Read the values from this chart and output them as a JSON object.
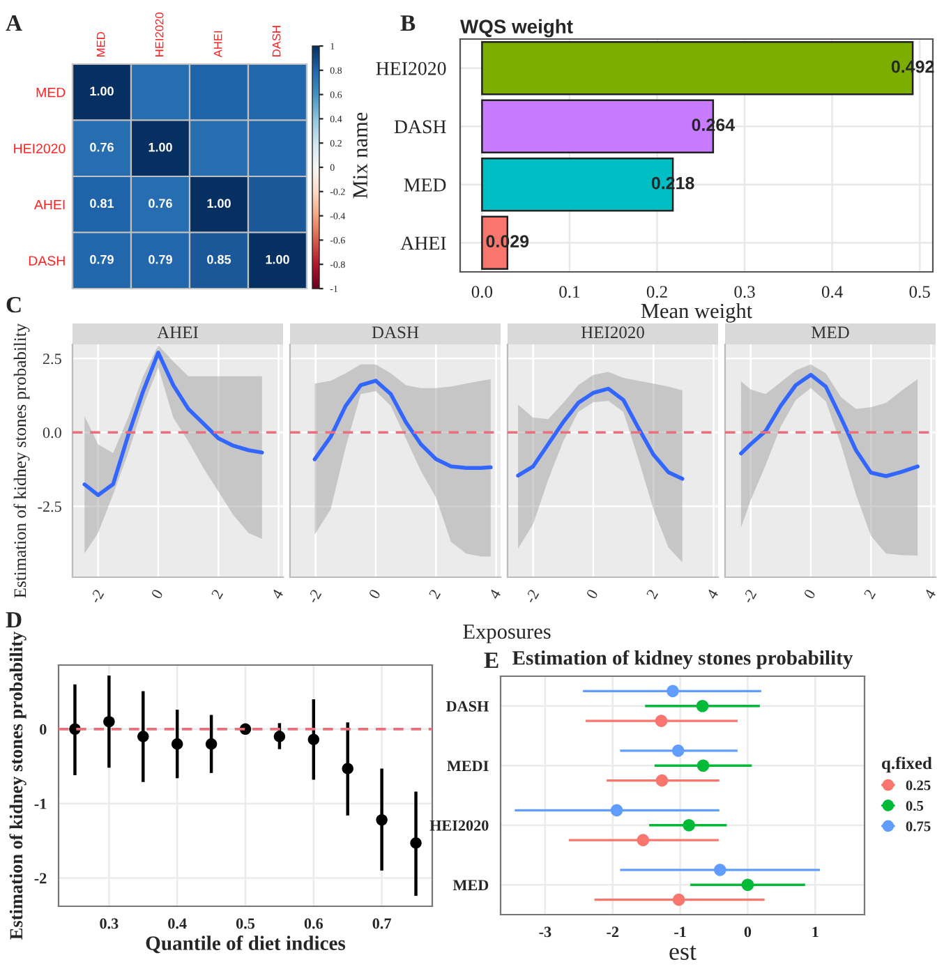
{
  "chart_data": [
    {
      "type": "heatmap",
      "annotations": [
        "A"
      ],
      "categories": [
        "MED",
        "HEI2020",
        "AHEI",
        "DASH"
      ],
      "y_categories": [
        "MED",
        "HEI2020",
        "AHEI",
        "DASH"
      ],
      "cells": [
        [
          1,
          0.76,
          0.81,
          0.79
        ],
        [
          0.76,
          1,
          0.76,
          0.79
        ],
        [
          0.81,
          0.76,
          1,
          0.85
        ],
        [
          0.79,
          0.79,
          0.85,
          1
        ]
      ],
      "cell_labels": [
        [
          "1.00",
          null,
          null,
          null
        ],
        [
          "0.76",
          "1.00",
          null,
          null
        ],
        [
          "0.81",
          "0.76",
          "1.00",
          null
        ],
        [
          "0.79",
          "0.79",
          "0.85",
          "1.00"
        ]
      ],
      "clim": [
        -1,
        1
      ],
      "cticks": [
        -1,
        -0.8,
        -0.6,
        -0.4,
        -0.2,
        0,
        0.2,
        0.4,
        0.6,
        0.8,
        1
      ]
    },
    {
      "type": "bar",
      "orientation": "horizontal",
      "title": "WQS weight",
      "annotations": [
        "B"
      ],
      "xlabel": "Mean weight",
      "ylabel": "Mix name",
      "categories": [
        "HEI2020",
        "DASH",
        "MED",
        "AHEI"
      ],
      "values": [
        0.492,
        0.264,
        0.218,
        0.029
      ],
      "colors": [
        "#7cae00",
        "#c77cff",
        "#00bfc4",
        "#f8766d"
      ],
      "data_labels": true,
      "xlim": [
        -0.025,
        0.515
      ],
      "xticks": [
        {
          "value": 0,
          "label": "0.0"
        },
        0.1,
        0.2,
        0.3,
        0.4,
        0.5
      ],
      "grid": true
    },
    {
      "type": "line",
      "title": "AHEI",
      "annotations": [
        "C"
      ],
      "ylabel": "Estimation of kidney stones probability",
      "xlim": [
        -2.85,
        4.15
      ],
      "xticks": [
        -2,
        0,
        2,
        4
      ],
      "ylim": [
        -4.9,
        2.98
      ],
      "yticks": [
        -2.5,
        {
          "value": 0,
          "label": "0.0"
        },
        2.5
      ],
      "grid": true,
      "series": [
        {
          "color": "#3366ff",
          "x": [
            -2.45,
            -2.0,
            -1.5,
            -1.0,
            -0.5,
            0,
            0.5,
            1.0,
            1.5,
            2.0,
            2.5,
            3.0,
            3.45
          ],
          "values": [
            -1.76,
            -2.12,
            -1.75,
            -0.1,
            1.4,
            2.7,
            1.6,
            0.8,
            0.3,
            -0.2,
            -0.45,
            -0.6,
            -0.68
          ],
          "lower": [
            -4.1,
            -3.4,
            -2.1,
            -0.7,
            0.9,
            2.2,
            0.5,
            -0.3,
            -1.2,
            -2.0,
            -2.8,
            -3.4,
            -3.6
          ],
          "upper": [
            0.55,
            -0.4,
            -0.7,
            0.5,
            1.9,
            2.95,
            2.4,
            1.9,
            1.9,
            1.9,
            1.9,
            1.9,
            1.9
          ]
        }
      ],
      "ref_lines": [
        {
          "axis": "y",
          "value": 0,
          "color": "#e8707c",
          "line_style": "dashed"
        }
      ]
    },
    {
      "type": "line",
      "title": "DASH",
      "xlabel": "Exposures",
      "tick_labels": "x",
      "xlim": [
        -2.85,
        4.15
      ],
      "xticks": [
        -2,
        0,
        2,
        4
      ],
      "ylim": [
        -4.9,
        2.98
      ],
      "yticks": [
        -2.5,
        0,
        2.5
      ],
      "grid": true,
      "series": [
        {
          "color": "#3366ff",
          "x": [
            -2.03,
            -1.5,
            -1.0,
            -0.5,
            0,
            0.5,
            1.0,
            1.5,
            2.0,
            2.5,
            3.0,
            3.5,
            3.82
          ],
          "values": [
            -0.91,
            -0.15,
            0.9,
            1.6,
            1.75,
            1.3,
            0.35,
            -0.4,
            -0.9,
            -1.15,
            -1.2,
            -1.2,
            -1.18
          ],
          "lower": [
            -3.46,
            -2.6,
            -0.5,
            1.3,
            1.4,
            0.9,
            -0.2,
            -1.3,
            -2.2,
            -3.7,
            -4.1,
            -4.2,
            -4.2
          ],
          "upper": [
            1.65,
            1.75,
            2.0,
            2.3,
            2.3,
            2.0,
            1.6,
            1.5,
            1.5,
            1.55,
            1.65,
            1.75,
            1.8
          ]
        }
      ],
      "ref_lines": [
        {
          "axis": "y",
          "value": 0,
          "color": "#e8707c",
          "line_style": "dashed"
        }
      ]
    },
    {
      "type": "line",
      "title": "HEI2020",
      "tick_labels": "x",
      "xlim": [
        -2.85,
        4.15
      ],
      "xticks": [
        -2,
        0,
        2,
        4
      ],
      "ylim": [
        -4.9,
        2.98
      ],
      "yticks": [
        -2.5,
        0,
        2.5
      ],
      "grid": true,
      "series": [
        {
          "color": "#3366ff",
          "x": [
            -2.5,
            -2.0,
            -1.5,
            -1.0,
            -0.5,
            0,
            0.5,
            1.0,
            1.5,
            2.0,
            2.5,
            2.96
          ],
          "values": [
            -1.46,
            -1.15,
            -0.4,
            0.35,
            1.0,
            1.34,
            1.48,
            1.1,
            0.15,
            -0.75,
            -1.35,
            -1.57
          ],
          "lower": [
            -3.93,
            -3.1,
            -1.6,
            -0.3,
            0.7,
            1.02,
            1.07,
            0.7,
            -0.9,
            -2.6,
            -3.9,
            -4.4
          ],
          "upper": [
            0.94,
            0.5,
            0.45,
            1.0,
            1.6,
            1.95,
            2.05,
            1.85,
            1.75,
            1.65,
            1.55,
            1.42
          ]
        }
      ],
      "ref_lines": [
        {
          "axis": "y",
          "value": 0,
          "color": "#e8707c",
          "line_style": "dashed"
        }
      ]
    },
    {
      "type": "line",
      "title": "MED",
      "tick_labels": "x",
      "xlim": [
        -2.85,
        4.15
      ],
      "xticks": [
        -2,
        0,
        2,
        4
      ],
      "ylim": [
        -4.9,
        2.98
      ],
      "yticks": [
        -2.5,
        0,
        2.5
      ],
      "grid": true,
      "series": [
        {
          "color": "#3366ff",
          "x": [
            -2.32,
            -2.0,
            -1.5,
            -1.0,
            -0.5,
            0,
            0.5,
            1.0,
            1.5,
            2.0,
            2.5,
            3.0,
            3.55
          ],
          "values": [
            -0.71,
            -0.4,
            0.05,
            0.9,
            1.6,
            1.95,
            1.55,
            0.5,
            -0.6,
            -1.36,
            -1.48,
            -1.34,
            -1.15
          ],
          "lower": [
            -3.22,
            -2.3,
            -1.1,
            0.2,
            1.1,
            1.5,
            1.05,
            -0.4,
            -2.1,
            -3.5,
            -4.1,
            -4.15,
            -4.17
          ],
          "upper": [
            1.73,
            1.45,
            1.3,
            1.7,
            2.1,
            2.3,
            2.0,
            1.2,
            0.8,
            0.85,
            1.0,
            1.4,
            1.8
          ]
        }
      ],
      "ref_lines": [
        {
          "axis": "y",
          "value": 0,
          "color": "#e8707c",
          "line_style": "dashed"
        }
      ]
    },
    {
      "type": "scatter",
      "annotations": [
        "D"
      ],
      "xlabel": "Quantile of diet indices",
      "ylabel": "Estimation of kidney stones probability",
      "x": [
        0.25,
        0.3,
        0.35,
        0.4,
        0.45,
        0.5,
        0.55,
        0.6,
        0.65,
        0.7,
        0.75
      ],
      "series": [
        {
          "color": "#000000",
          "values": [
            0,
            0.1,
            -0.1,
            -0.2,
            -0.2,
            0,
            -0.1,
            -0.14,
            -0.53,
            -1.22,
            -1.53
          ],
          "errors": [
            [
              -0.62,
              0.6
            ],
            [
              -0.52,
              0.72
            ],
            [
              -0.71,
              0.51
            ],
            [
              -0.66,
              0.26
            ],
            [
              -0.59,
              0.19
            ],
            null,
            [
              -0.27,
              0.08
            ],
            [
              -0.68,
              0.4
            ],
            [
              -1.16,
              0.09
            ],
            [
              -1.9,
              -0.53
            ],
            [
              -2.24,
              -0.84
            ]
          ]
        }
      ],
      "xlim": [
        0.226,
        0.774
      ],
      "xticks": [
        0.3,
        0.4,
        0.5,
        0.6,
        0.7
      ],
      "ylim": [
        -2.38,
        0.86
      ],
      "yticks": [
        -2,
        -1,
        0
      ],
      "grid": true,
      "marker": "circle",
      "ref_lines": [
        {
          "axis": "y",
          "value": 0,
          "color": "#e8707c",
          "line_style": "dashed"
        }
      ]
    },
    {
      "type": "scatter",
      "orientation": "horizontal",
      "title": "Estimation of kidney stones probability",
      "annotations": [
        "E"
      ],
      "xlabel": "est",
      "legend_title": "q.fixed",
      "legend": "right",
      "marker": "circle",
      "grid": true,
      "categories": [
        "DASH",
        "MEDI",
        "HEI2020",
        "MED"
      ],
      "xlim": [
        -3.66,
        1.73
      ],
      "xticks": [
        -3,
        -2,
        -1,
        0,
        1
      ],
      "series": [
        {
          "name": "0.25",
          "color": "#f8766d",
          "values": [
            -1.28,
            -1.27,
            -1.55,
            -1.02
          ],
          "errors": [
            [
              -2.4,
              -0.15
            ],
            [
              -2.09,
              -0.42
            ],
            [
              -2.65,
              -0.43
            ],
            [
              -2.27,
              0.25
            ]
          ]
        },
        {
          "name": "0.5",
          "color": "#00ba38",
          "values": [
            -0.67,
            -0.66,
            -0.87,
            0
          ],
          "errors": [
            [
              -1.52,
              0.18
            ],
            [
              -1.38,
              0.06
            ],
            [
              -1.46,
              -0.31
            ],
            [
              -0.85,
              0.85
            ]
          ]
        },
        {
          "name": "0.75",
          "color": "#619cff",
          "values": [
            -1.11,
            -1.03,
            -1.94,
            -0.41
          ],
          "errors": [
            [
              -2.44,
              0.2
            ],
            [
              -1.89,
              -0.15
            ],
            [
              -3.45,
              -0.42
            ],
            [
              -1.89,
              1.07
            ]
          ]
        }
      ]
    }
  ]
}
